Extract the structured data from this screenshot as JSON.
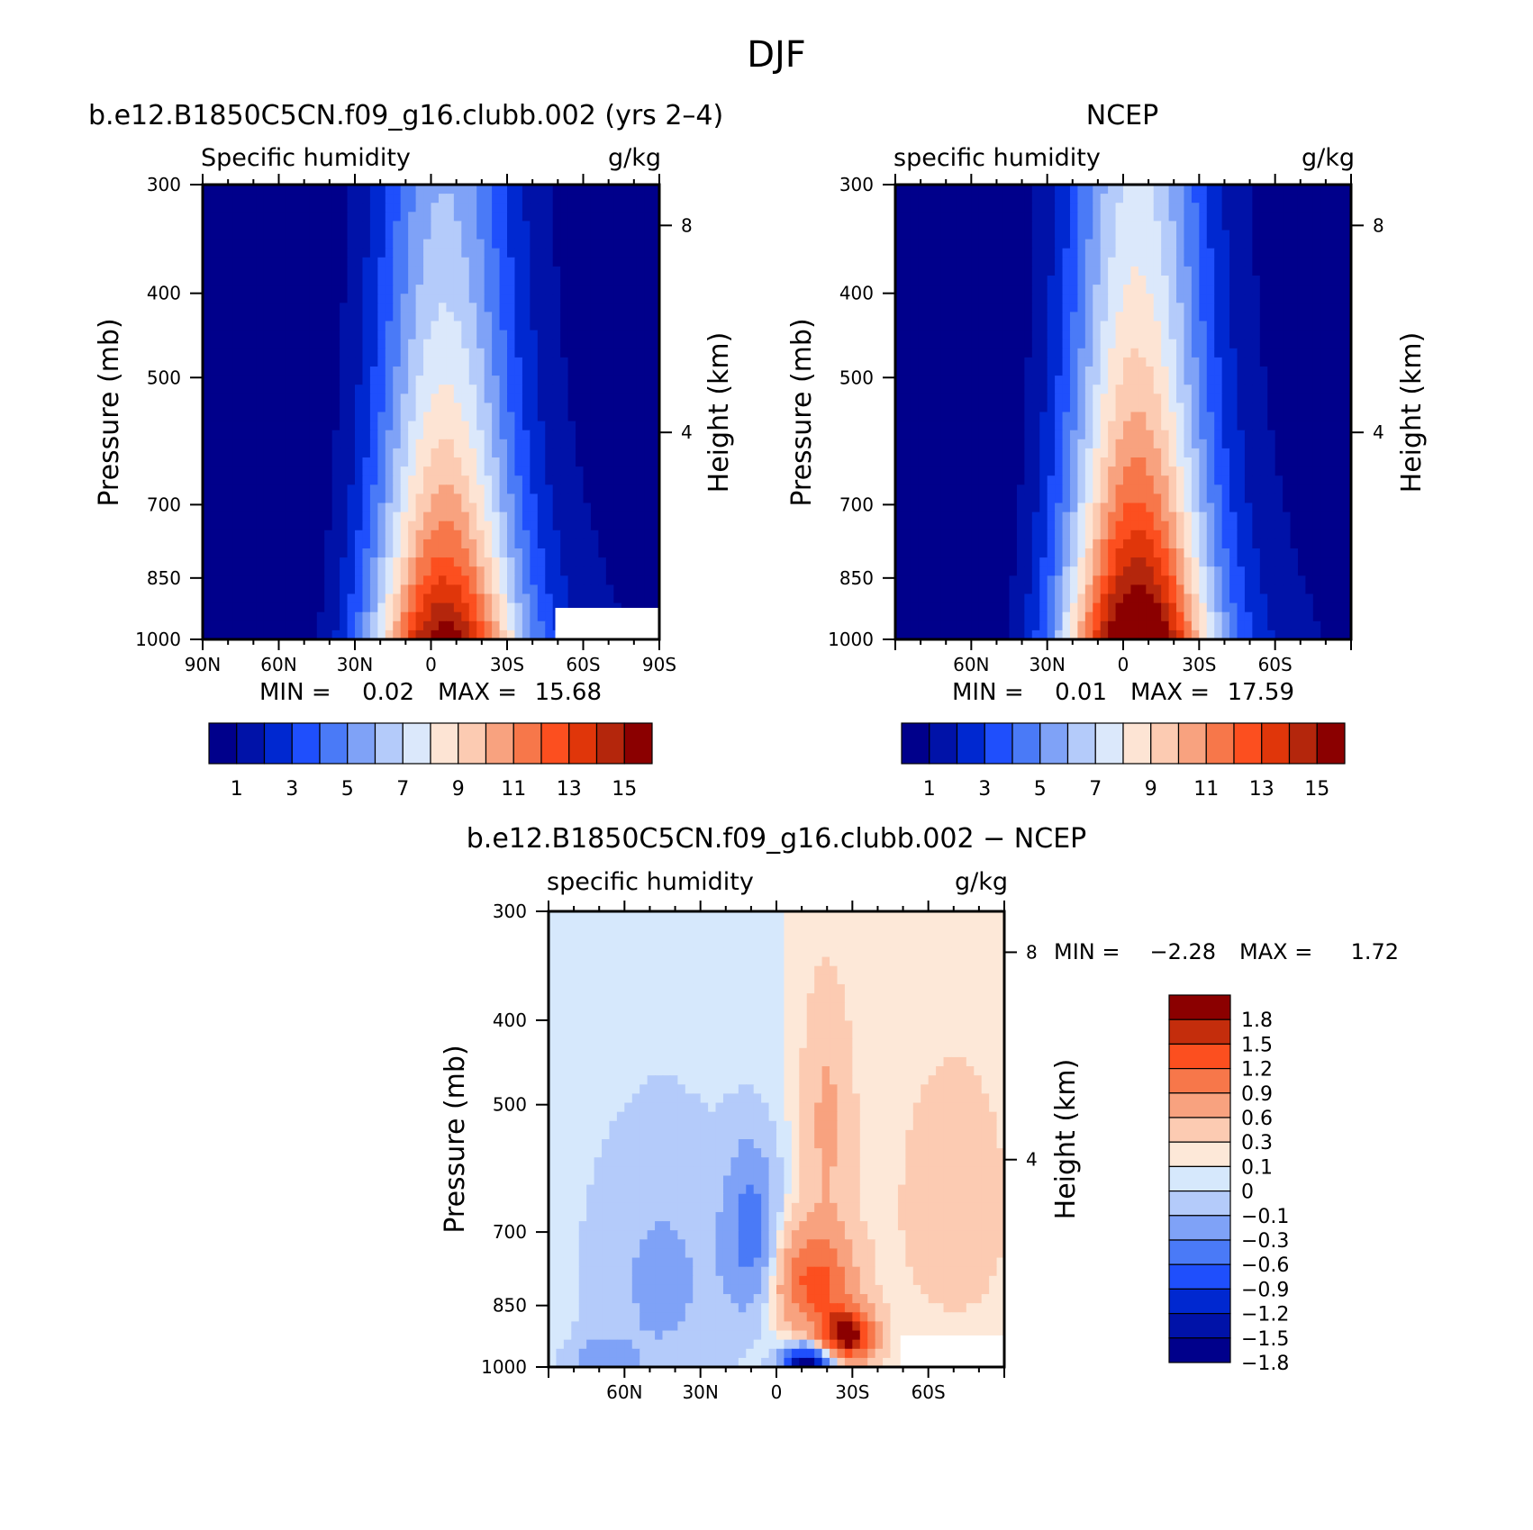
{
  "figure": {
    "title": "DJF"
  },
  "colors": {
    "abs": [
      "#00008b",
      "#0012a8",
      "#0028d0",
      "#1f4ffc",
      "#4a7af7",
      "#7fa2f7",
      "#b4cbfa",
      "#dbe8fb",
      "#fde4d4",
      "#fccbb2",
      "#f8a27f",
      "#f7774a",
      "#fc4f1f",
      "#e0360a",
      "#b4260c",
      "#8b0000"
    ],
    "diff": [
      "#00008b",
      "#0012a8",
      "#0028d0",
      "#1f4ffc",
      "#4a7af7",
      "#7fa2f7",
      "#b4cbfa",
      "#d6e8fc",
      "#fde8d8",
      "#fccbb2",
      "#f8a27f",
      "#f7774a",
      "#fc4f1f",
      "#c42d0c",
      "#8b0000"
    ]
  },
  "chart_data": [
    {
      "id": "model",
      "type": "heatmap",
      "case_title": "b.e12.B1850C5CN.f09_g16.clubb.002 (yrs 2–4)",
      "left_label": "Specific humidity",
      "units": "g/kg",
      "ylabel": "Pressure (mb)",
      "y2label": "Height (km)",
      "yticks": [
        "300",
        "400",
        "500",
        "700",
        "850",
        "1000"
      ],
      "y2ticks": [
        "8",
        "4"
      ],
      "xticks": [
        "90N",
        "60N",
        "30N",
        "0",
        "30S",
        "60S",
        "90S"
      ],
      "xlim": [
        -90,
        90
      ],
      "ylim": [
        1000,
        300
      ],
      "min_label": "MIN =",
      "min_value": "0.02",
      "max_label": "MAX =",
      "max_value": "15.68",
      "min": 0.02,
      "max": 15.68,
      "peak_lat": -5,
      "colorbar_labels": [
        "1",
        "3",
        "5",
        "7",
        "9",
        "11",
        "13",
        "15"
      ]
    },
    {
      "id": "obs",
      "type": "heatmap",
      "case_title": "NCEP",
      "left_label": "specific humidity",
      "units": "g/kg",
      "ylabel": "Pressure (mb)",
      "y2label": "Height (km)",
      "yticks": [
        "300",
        "400",
        "500",
        "700",
        "850",
        "1000"
      ],
      "y2ticks": [
        "8",
        "4"
      ],
      "xticks": [
        "60N",
        "30N",
        "0",
        "30S",
        "60S"
      ],
      "xlim": [
        -90,
        90
      ],
      "ylim": [
        1000,
        300
      ],
      "min_label": "MIN =",
      "min_value": "0.01",
      "max_label": "MAX =",
      "max_value": "17.59",
      "min": 0.01,
      "max": 17.59,
      "peak_lat": -5,
      "colorbar_labels": [
        "1",
        "3",
        "5",
        "7",
        "9",
        "11",
        "13",
        "15"
      ]
    },
    {
      "id": "diff",
      "type": "heatmap",
      "case_title": "b.e12.B1850C5CN.f09_g16.clubb.002 − NCEP",
      "left_label": "specific humidity",
      "units": "g/kg",
      "ylabel": "Pressure (mb)",
      "y2label": "Height (km)",
      "yticks": [
        "300",
        "400",
        "500",
        "700",
        "850",
        "1000"
      ],
      "y2ticks": [
        "8",
        "4"
      ],
      "xticks": [
        "60N",
        "30N",
        "0",
        "30S",
        "60S"
      ],
      "xlim": [
        -90,
        90
      ],
      "ylim": [
        1000,
        300
      ],
      "min_label": "MIN =",
      "min_value": "−2.28",
      "max_label": "MAX =",
      "max_value": "1.72",
      "min": -2.28,
      "max": 1.72,
      "colorbar_labels": [
        "1.8",
        "1.5",
        "1.2",
        "0.9",
        "0.6",
        "0.3",
        "0.1",
        "0",
        "−0.1",
        "−0.3",
        "−0.6",
        "−0.9",
        "−1.2",
        "−1.5",
        "−1.8"
      ]
    }
  ]
}
